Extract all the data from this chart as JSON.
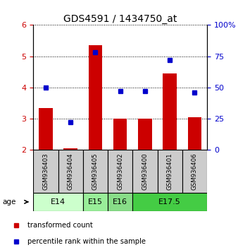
{
  "title": "GDS4591 / 1434750_at",
  "samples": [
    "GSM936403",
    "GSM936404",
    "GSM936405",
    "GSM936402",
    "GSM936400",
    "GSM936401",
    "GSM936406"
  ],
  "transformed_count": [
    3.35,
    2.05,
    5.35,
    3.0,
    3.0,
    4.45,
    3.05
  ],
  "percentile_rank": [
    50,
    22,
    78,
    47,
    47,
    72,
    46
  ],
  "ylim_left": [
    2,
    6
  ],
  "ylim_right": [
    0,
    100
  ],
  "yticks_left": [
    2,
    3,
    4,
    5,
    6
  ],
  "yticks_right": [
    0,
    25,
    50,
    75,
    100
  ],
  "bar_color": "#cc0000",
  "dot_color": "#0000cc",
  "bar_bottom": 2.0,
  "age_groups": [
    {
      "label": "E14",
      "spans": [
        0,
        1
      ],
      "color": "#ccffcc"
    },
    {
      "label": "E15",
      "spans": [
        2
      ],
      "color": "#99ee99"
    },
    {
      "label": "E16",
      "spans": [
        3
      ],
      "color": "#88dd88"
    },
    {
      "label": "E17.5",
      "spans": [
        4,
        5,
        6
      ],
      "color": "#44cc44"
    }
  ],
  "legend_bar_label": "transformed count",
  "legend_dot_label": "percentile rank within the sample",
  "grid_style": "dotted",
  "background_color": "#ffffff",
  "sample_box_color": "#cccccc"
}
